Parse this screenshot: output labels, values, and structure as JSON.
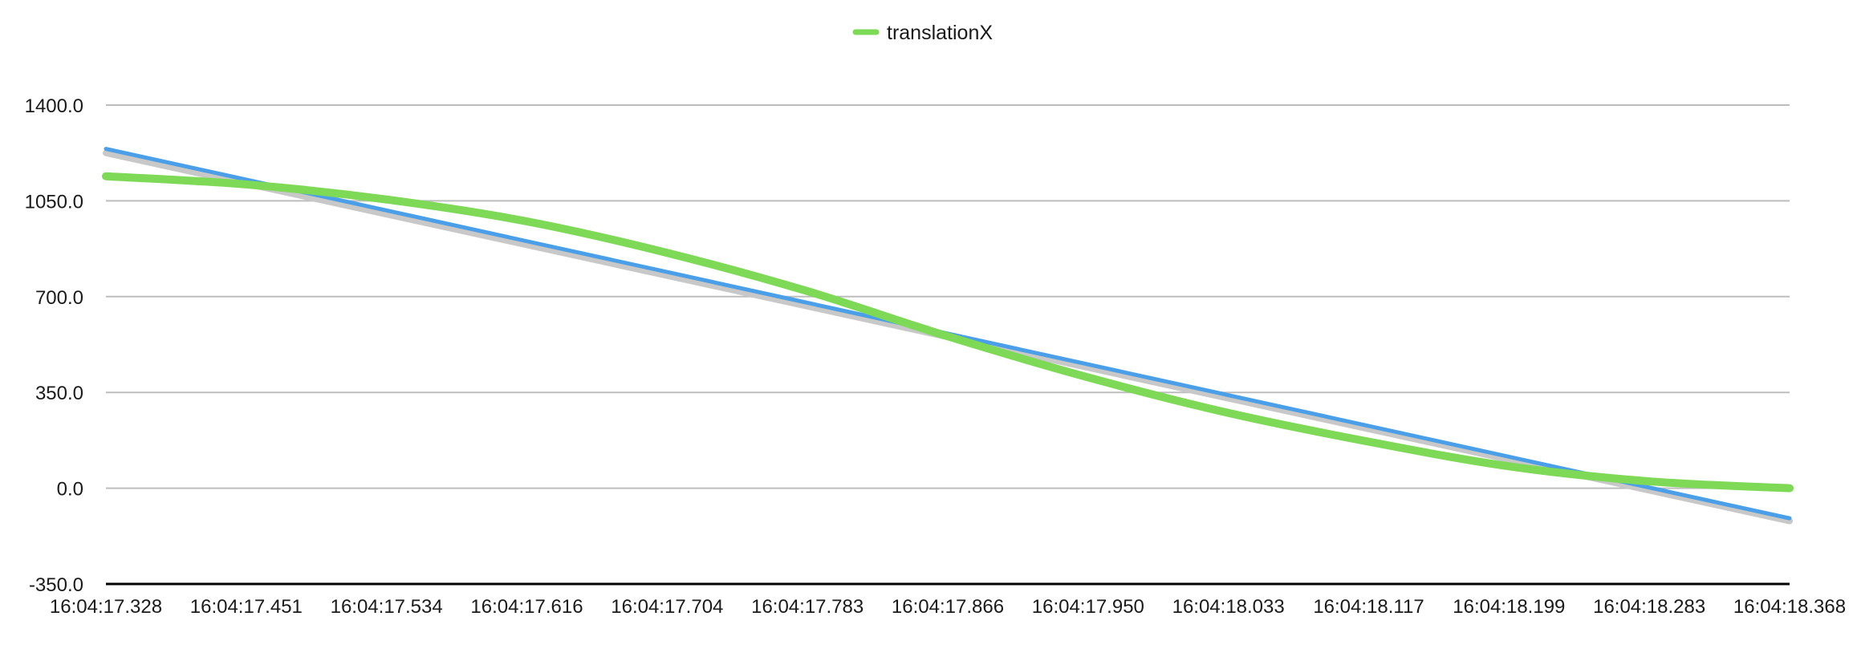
{
  "chart_data": {
    "type": "line",
    "legend": {
      "position": "top-center",
      "entries": [
        {
          "label": "translationX",
          "color": "#7ED957"
        }
      ]
    },
    "y_axis": {
      "range": [
        -350.0,
        1400.0
      ],
      "ticks": [
        "1400.0",
        "1050.0",
        "700.0",
        "350.0",
        "0.0",
        "-350.0"
      ],
      "tick_values": [
        1400,
        1050,
        700,
        350,
        0,
        -350
      ],
      "grid": true
    },
    "x_axis": {
      "categories": [
        "16:04:17.328",
        "16:04:17.451",
        "16:04:17.534",
        "16:04:17.616",
        "16:04:17.704",
        "16:04:17.783",
        "16:04:17.866",
        "16:04:17.950",
        "16:04:18.033",
        "16:04:18.117",
        "16:04:18.199",
        "16:04:18.283",
        "16:04:18.368"
      ]
    },
    "series": [
      {
        "name": "translationX",
        "color": "#7ED957",
        "values": [
          1140,
          1110,
          1055,
          975,
          860,
          720,
          555,
          405,
          275,
          170,
          80,
          25,
          0
        ]
      }
    ],
    "trendlines": [
      {
        "color": "#4A9FE8",
        "start": 1240,
        "end": -110
      },
      {
        "color": "#C8C8C8",
        "start": 1225,
        "end": -120
      }
    ],
    "colors": {
      "grid": "#BDBDBD",
      "baseline": "#000000"
    }
  }
}
